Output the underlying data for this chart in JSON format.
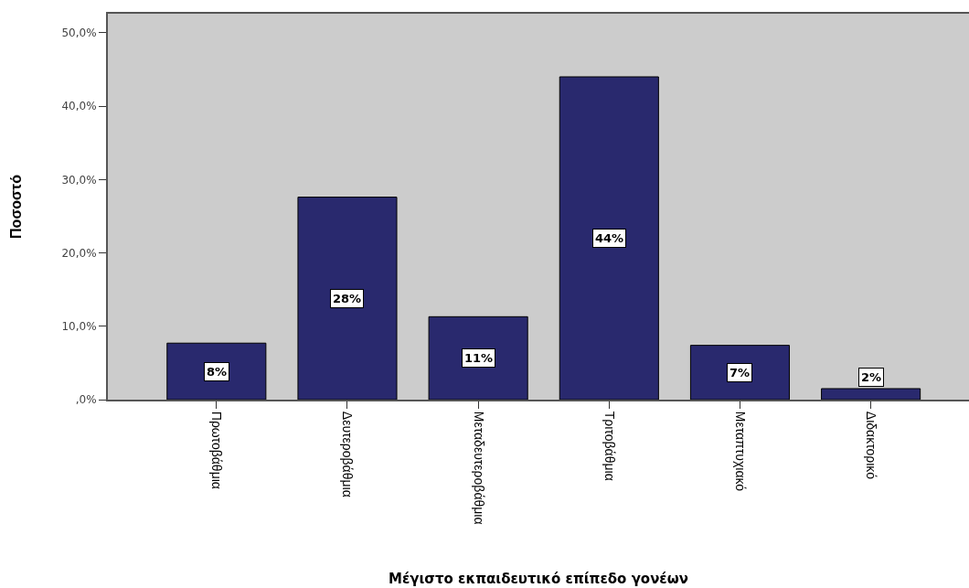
{
  "chart_data": {
    "type": "bar",
    "xlabel": "Μέγιστο εκπαιδευτικό επίπεδο γονέων",
    "ylabel": "Ποσοστό",
    "categories": [
      "Πρωτοβάθμια",
      "Δευτεροβάθμια",
      "Μεταδευτεροβάθμια",
      "Τριτοβάθμια",
      "Μεταπτυχιακό",
      "Διδακτορικό"
    ],
    "values": [
      7.7,
      27.6,
      11.3,
      44.0,
      7.4,
      1.5
    ],
    "color": "#29296e",
    "value_labels": [
      "8%",
      "28%",
      "11%",
      "44%",
      "7%",
      "2%"
    ],
    "ylim": [
      0,
      52.6
    ],
    "yticks": [
      {
        "value": 0,
        "label": ",0%"
      },
      {
        "value": 10,
        "label": "10,0%"
      },
      {
        "value": 20,
        "label": "20,0%"
      },
      {
        "value": 30,
        "label": "30,0%"
      },
      {
        "value": 40,
        "label": "40,0%"
      },
      {
        "value": 50,
        "label": "50,0%"
      }
    ],
    "grid": false
  }
}
